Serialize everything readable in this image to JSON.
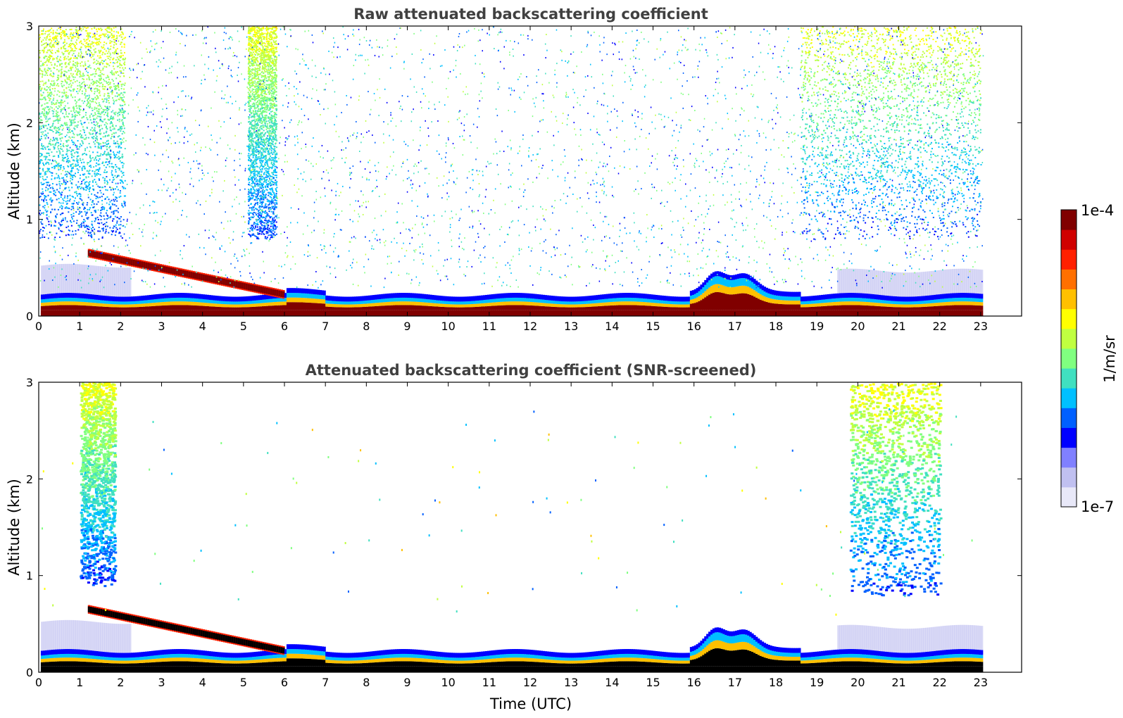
{
  "chart_data": [
    {
      "type": "heatmap",
      "title": "Raw attenuated backscattering coefficient",
      "xlabel": "",
      "ylabel": "Altitude (km)",
      "xlim": [
        0,
        24
      ],
      "ylim": [
        0,
        3
      ],
      "xticks": [
        "0",
        "1",
        "2",
        "3",
        "4",
        "5",
        "6",
        "7",
        "8",
        "9",
        "10",
        "11",
        "12",
        "13",
        "14",
        "15",
        "16",
        "17",
        "18",
        "19",
        "20",
        "21",
        "22",
        "23"
      ],
      "yticks": [
        "0",
        "1",
        "2",
        "3"
      ],
      "data_end_hour": 23.05,
      "features": [
        {
          "name": "surface layer",
          "x_start": 0.05,
          "x_end": 23.05,
          "alt_bottom": 0.0,
          "alt_top": 0.15,
          "level": "high"
        },
        {
          "name": "elevated layer",
          "x_start": 1.2,
          "x_end": 6.0,
          "alt_start": 0.65,
          "alt_end": 0.22,
          "level": "high"
        },
        {
          "name": "noise column",
          "x_start": 0.0,
          "x_end": 2.1,
          "alt_bottom": 0.8,
          "alt_top": 3.0
        },
        {
          "name": "noise column",
          "x_start": 5.1,
          "x_end": 5.8,
          "alt_bottom": 0.8,
          "alt_top": 3.0
        },
        {
          "name": "noise column",
          "x_start": 18.6,
          "x_end": 23.0,
          "alt_bottom": 0.8,
          "alt_top": 3.0
        }
      ]
    },
    {
      "type": "heatmap",
      "title": "Attenuated backscattering coefficient (SNR-screened)",
      "xlabel": "Time (UTC)",
      "ylabel": "Altitude (km)",
      "xlim": [
        0,
        24
      ],
      "ylim": [
        0,
        3
      ],
      "xticks": [
        "0",
        "1",
        "2",
        "3",
        "4",
        "5",
        "6",
        "7",
        "8",
        "9",
        "10",
        "11",
        "12",
        "13",
        "14",
        "15",
        "16",
        "17",
        "18",
        "19",
        "20",
        "21",
        "22",
        "23"
      ],
      "yticks": [
        "0",
        "1",
        "2",
        "3"
      ],
      "data_end_hour": 23.05,
      "features": [
        {
          "name": "surface layer",
          "x_start": 0.05,
          "x_end": 23.05,
          "alt_bottom": 0.0,
          "alt_top": 0.15,
          "level": "saturated"
        },
        {
          "name": "elevated layer",
          "x_start": 1.2,
          "x_end": 6.0,
          "alt_start": 0.65,
          "alt_end": 0.22,
          "level": "saturated"
        },
        {
          "name": "screened column",
          "x_start": 1.0,
          "x_end": 1.85,
          "alt_bottom": 0.9,
          "alt_top": 3.0
        },
        {
          "name": "screened column",
          "x_start": 19.8,
          "x_end": 22.0,
          "alt_bottom": 0.8,
          "alt_top": 3.0
        }
      ]
    }
  ],
  "colorbar": {
    "label": "1/m/sr",
    "max_label": "1e-4",
    "min_label": "1e-7",
    "colors": [
      "#e8e8f8",
      "#c0c0f0",
      "#8080ff",
      "#0000ff",
      "#0060ff",
      "#00c0ff",
      "#40e0c0",
      "#80ff80",
      "#c0ff40",
      "#ffff00",
      "#ffc000",
      "#ff7000",
      "#ff2000",
      "#d00000",
      "#800000"
    ]
  }
}
